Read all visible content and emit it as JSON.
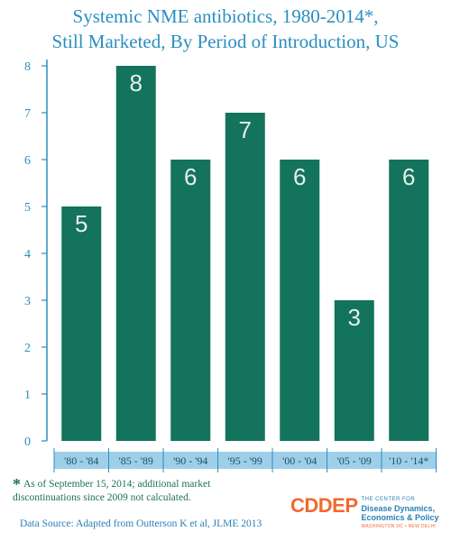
{
  "title_line1": "Systemic NME antibiotics, 1980-2014*,",
  "title_line2": "Still Marketed, By Period of Introduction, US",
  "footnote": {
    "star": "*",
    "line1": "As of September 15, 2014; additional market",
    "line2": "discontinuations since 2009 not calculated."
  },
  "source": "Data Source: Adapted from Outterson K et al, JLME 2013",
  "logo": {
    "mark": "CDDEP",
    "line1": "THE CENTER FOR",
    "line2": "Disease Dynamics,",
    "line3": "Economics & Policy",
    "line4": "WASHINGTON DC • NEW DELHI"
  },
  "colors": {
    "bar": "#13735c",
    "axis": "#2a8fc0",
    "label_band": "#9fcfe8",
    "value_label": "#e6efe9",
    "title": "#2a8fc0"
  },
  "chart_data": {
    "type": "bar",
    "title": "Systemic NME antibiotics, 1980-2014*, Still Marketed, By Period of Introduction, US",
    "categories": [
      "'80 - '84",
      "'85 - '89",
      "'90 - '94",
      "'95 - '99",
      "'00 - '04",
      "'05 - '09",
      "'10 - '14*"
    ],
    "values": [
      5,
      8,
      6,
      7,
      6,
      3,
      6
    ],
    "ylim": [
      0,
      8
    ],
    "yticks": [
      0,
      1,
      2,
      3,
      4,
      5,
      6,
      7,
      8
    ],
    "grid": false,
    "data_labels": true
  }
}
